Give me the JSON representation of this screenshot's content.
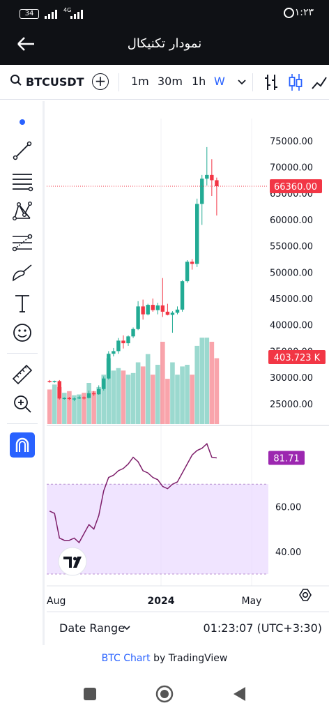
{
  "status": {
    "battery": "34",
    "network": "4G",
    "time": "۱:۲۳"
  },
  "appbar": {
    "title": "نمودار تکنیکال"
  },
  "toolbar": {
    "symbol": "BTCUSDT",
    "timeframes": [
      "1m",
      "30m",
      "1h",
      "W"
    ],
    "active_timeframe": "W"
  },
  "leftbar": {
    "tools": [
      "cursor-dot-icon",
      "trend-line-icon",
      "horizontal-lines-icon",
      "pattern-icon",
      "fib-icon",
      "brush-icon",
      "text-icon",
      "emoji-icon",
      "ruler-icon",
      "zoom-in-icon",
      "magnet-icon"
    ]
  },
  "chart_data": [
    {
      "type": "candlestick",
      "symbol": "BTCUSDT",
      "interval": "W",
      "price_axis_ticks": [
        "75000.00",
        "70000.00",
        "65000.00",
        "60000.00",
        "55000.00",
        "50000.00",
        "45000.00",
        "40000.00",
        "35000.00",
        "30000.00",
        "25000.00"
      ],
      "ylim": [
        21000,
        77500
      ],
      "last_price_label": "66360.00",
      "last_price": 66360,
      "volume_label": "403.723 K",
      "x_ticks": [
        "Aug",
        "2024",
        "May"
      ],
      "candles": [
        {
          "o": 29300,
          "h": 29500,
          "l": 29000,
          "c": 29200
        },
        {
          "o": 29200,
          "h": 29400,
          "l": 29000,
          "c": 29300
        },
        {
          "o": 29300,
          "h": 29500,
          "l": 25800,
          "c": 26000
        },
        {
          "o": 26000,
          "h": 26200,
          "l": 25800,
          "c": 26100
        },
        {
          "o": 26100,
          "h": 26300,
          "l": 25700,
          "c": 25900
        },
        {
          "o": 25900,
          "h": 26200,
          "l": 25500,
          "c": 26000
        },
        {
          "o": 26000,
          "h": 26500,
          "l": 25900,
          "c": 26200
        },
        {
          "o": 26200,
          "h": 26400,
          "l": 25800,
          "c": 26100
        },
        {
          "o": 26100,
          "h": 27500,
          "l": 26000,
          "c": 27000
        },
        {
          "o": 27000,
          "h": 27400,
          "l": 26500,
          "c": 26800
        },
        {
          "o": 26800,
          "h": 28500,
          "l": 26700,
          "c": 27800
        },
        {
          "o": 27800,
          "h": 30200,
          "l": 27500,
          "c": 29800
        },
        {
          "o": 29800,
          "h": 35000,
          "l": 29600,
          "c": 34500
        },
        {
          "o": 34500,
          "h": 35600,
          "l": 34000,
          "c": 35000
        },
        {
          "o": 35000,
          "h": 37500,
          "l": 34500,
          "c": 37000
        },
        {
          "o": 37000,
          "h": 38000,
          "l": 35500,
          "c": 36500
        },
        {
          "o": 36500,
          "h": 38000,
          "l": 36000,
          "c": 37800
        },
        {
          "o": 37800,
          "h": 39500,
          "l": 37500,
          "c": 39200
        },
        {
          "o": 39200,
          "h": 44500,
          "l": 39000,
          "c": 43500
        },
        {
          "o": 43500,
          "h": 44800,
          "l": 41000,
          "c": 42000
        },
        {
          "o": 42000,
          "h": 44000,
          "l": 41800,
          "c": 43800
        },
        {
          "o": 43800,
          "h": 45000,
          "l": 42500,
          "c": 42800
        },
        {
          "o": 42800,
          "h": 44200,
          "l": 42000,
          "c": 43700
        },
        {
          "o": 43700,
          "h": 48900,
          "l": 41500,
          "c": 42500
        },
        {
          "o": 42500,
          "h": 44000,
          "l": 41800,
          "c": 41900
        },
        {
          "o": 41900,
          "h": 42600,
          "l": 38500,
          "c": 42300
        },
        {
          "o": 42300,
          "h": 43500,
          "l": 42000,
          "c": 42900
        },
        {
          "o": 42900,
          "h": 48500,
          "l": 42500,
          "c": 48300
        },
        {
          "o": 48300,
          "h": 52300,
          "l": 48000,
          "c": 52000
        },
        {
          "o": 52000,
          "h": 52500,
          "l": 50500,
          "c": 51600
        },
        {
          "o": 51600,
          "h": 64000,
          "l": 51000,
          "c": 63000
        },
        {
          "o": 63000,
          "h": 68500,
          "l": 59000,
          "c": 67800
        },
        {
          "o": 67800,
          "h": 73800,
          "l": 66500,
          "c": 68500
        },
        {
          "o": 68500,
          "h": 71500,
          "l": 64500,
          "c": 67500
        },
        {
          "o": 67500,
          "h": 68000,
          "l": 60800,
          "c": 66360
        }
      ],
      "volumes": [
        0.42,
        0.48,
        0.45,
        0.38,
        0.4,
        0.35,
        0.36,
        0.38,
        0.5,
        0.4,
        0.45,
        0.6,
        0.8,
        0.65,
        0.68,
        0.65,
        0.6,
        0.62,
        0.75,
        0.7,
        0.85,
        0.6,
        0.72,
        1.0,
        0.55,
        0.75,
        0.6,
        0.7,
        0.72,
        0.6,
        0.95,
        1.05,
        1.05,
        1.0,
        0.8
      ]
    },
    {
      "type": "line",
      "indicator": "RSI",
      "value_label": "81.71",
      "y_ticks": [
        "60.00",
        "40.00"
      ],
      "band": [
        30,
        70
      ],
      "values": [
        58,
        57,
        46,
        45,
        45,
        46,
        44,
        48,
        52,
        50,
        56,
        67,
        73,
        74,
        76,
        77,
        79,
        82,
        80,
        76,
        75,
        73,
        72,
        69,
        68,
        70,
        71,
        75,
        79,
        83,
        85,
        86,
        88,
        82,
        81.71
      ]
    }
  ],
  "bottom": {
    "date_range": "Date Range",
    "clock": "01:23:07 (UTC+3:30)"
  },
  "footer": {
    "link": "BTC Chart",
    "suffix": " by TradingView"
  },
  "colors": {
    "up": "#22ab94",
    "down": "#f23645",
    "rsi": "#7e1f6b",
    "accent": "#2962ff"
  }
}
